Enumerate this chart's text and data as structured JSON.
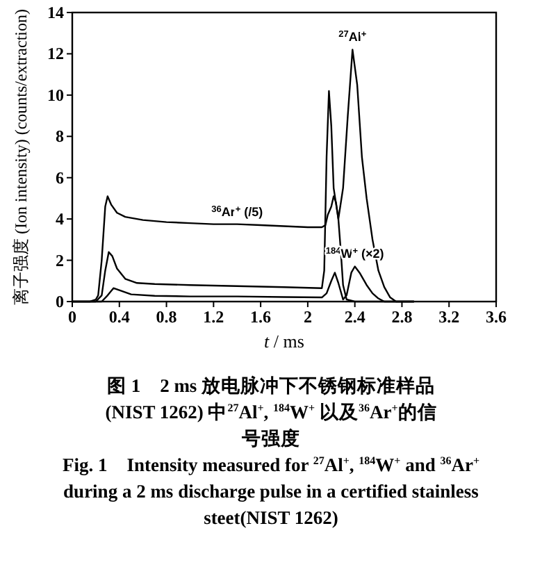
{
  "chart_data": {
    "type": "line",
    "title": "图 1　2 ms 放电脉冲下不锈钢标准样品 (NIST 1262) 中$^{27}$Al$^{+}$, $^{184}$W$^{+}$ 以及$^{36}$Ar$^{+}$的信号强度",
    "subtitle": "Fig. 1　Intensity measured for $^{27}$Al$^{+}$, $^{184}$W$^{+}$ and $^{36}$Ar$^{+}$ during a 2 ms discharge pulse in a certified stainless steet(NIST 1262)",
    "xlabel": "*t* / ms",
    "ylabel": "离子强度 (Ion intensity) (counts/extraction)",
    "xlim": [
      0,
      3.6
    ],
    "ylim": [
      0,
      14
    ],
    "xticks": [
      0,
      0.4,
      0.8,
      1.2,
      1.6,
      2,
      2.4,
      2.8,
      3.2,
      3.6
    ],
    "yticks": [
      0,
      2,
      4,
      6,
      8,
      10,
      12,
      14
    ],
    "grid": false,
    "marker": "none",
    "line_style": "solid",
    "annotations": [
      {
        "text": "$^{36}$Ar$^{+}$ (/5)",
        "x": 1.4,
        "y": 3.75
      },
      {
        "text": "$^{27}$Al$^{+}$",
        "x": 2.38,
        "y": 12.2
      },
      {
        "text": "$^{184}$W$^{+}$ (×2)",
        "x": 2.4,
        "y": 1.7
      }
    ],
    "series": [
      {
        "color": "#000000",
        "x": [
          0,
          0.15,
          0.2,
          0.22,
          0.25,
          0.28,
          0.3,
          0.33,
          0.38,
          0.45,
          0.5,
          0.6,
          0.8,
          1.0,
          1.2,
          1.4,
          1.6,
          1.8,
          2.0,
          2.12,
          2.15,
          2.17,
          2.2,
          2.22,
          2.24,
          2.26,
          2.28,
          2.3,
          2.33,
          2.4,
          2.9
        ],
        "values": [
          0,
          0,
          0.1,
          0.3,
          2,
          4.6,
          5.1,
          4.7,
          4.3,
          4.1,
          4.05,
          3.95,
          3.85,
          3.8,
          3.75,
          3.75,
          3.7,
          3.65,
          3.6,
          3.6,
          3.7,
          4.2,
          4.6,
          5.1,
          4.8,
          4.0,
          2.5,
          0.8,
          0.1,
          0,
          0
        ]
      },
      {
        "color": "#000000",
        "x": [
          0,
          0.2,
          0.25,
          0.28,
          0.31,
          0.34,
          0.38,
          0.45,
          0.55,
          0.7,
          1.0,
          1.4,
          1.8,
          2.12,
          2.14,
          2.16,
          2.18,
          2.2,
          2.22,
          2.26,
          2.3,
          2.34,
          2.38,
          2.42,
          2.46,
          2.5,
          2.55,
          2.6,
          2.65,
          2.7,
          2.75,
          2.9
        ],
        "values": [
          0,
          0,
          0.3,
          1.5,
          2.4,
          2.2,
          1.6,
          1.1,
          0.9,
          0.85,
          0.8,
          0.75,
          0.7,
          0.65,
          1.5,
          7,
          10.2,
          8.5,
          5.5,
          4.0,
          5.5,
          9,
          12.2,
          10.5,
          7,
          5,
          3,
          1.5,
          0.7,
          0.2,
          0,
          0
        ]
      },
      {
        "color": "#000000",
        "x": [
          0,
          0.25,
          0.3,
          0.35,
          0.4,
          0.5,
          0.7,
          1.0,
          1.4,
          1.8,
          2.12,
          2.16,
          2.2,
          2.23,
          2.26,
          2.3,
          2.33,
          2.37,
          2.4,
          2.44,
          2.5,
          2.55,
          2.6,
          2.65,
          2.9
        ],
        "values": [
          0,
          0,
          0.3,
          0.65,
          0.55,
          0.35,
          0.28,
          0.25,
          0.25,
          0.22,
          0.2,
          0.4,
          1.0,
          1.4,
          0.9,
          0.1,
          0.3,
          1.4,
          1.7,
          1.4,
          0.8,
          0.4,
          0.15,
          0,
          0
        ]
      }
    ]
  }
}
